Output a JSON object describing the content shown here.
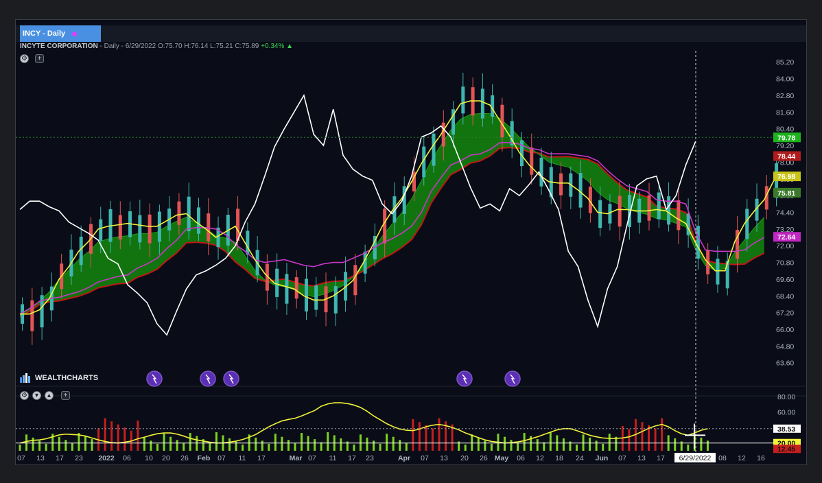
{
  "symbol_tab": "INCY - Daily",
  "info": {
    "name": "INCYTE CORPORATION",
    "details": " - Daily - 6/29/2022 ",
    "o": "O:75.70",
    "h": "H:76.14",
    "l": "L:75.21",
    "c": "C:75.89",
    "chg": "+0.34% ▲"
  },
  "brand": "WEALTHCHARTS",
  "icons": [
    "settings-icon",
    "add-icon",
    "eye-icon",
    "collapse-icon",
    "lightning-event-icon"
  ],
  "colors": {
    "up": "#3fb6b0",
    "down": "#e25555",
    "tenkan": "#f2f23a",
    "kijun": "#c837c8",
    "lagging": "#ffffff",
    "cloud_up": "#137a0e",
    "cloud_edge_red": "#c01616",
    "rsi": "#f2f23a",
    "vol_up": "#7ed321",
    "vol_down": "#c81e1e"
  },
  "chart_data": {
    "type": "candlestick",
    "title": "INCY - Daily",
    "y_ticks": [
      "85.20",
      "84.00",
      "82.80",
      "81.60",
      "80.40",
      "79.20",
      "78.00",
      "76.80",
      "75.60",
      "74.40",
      "73.20",
      "72.00",
      "70.80",
      "69.60",
      "68.40",
      "67.20",
      "66.00",
      "64.80",
      "63.60"
    ],
    "x_ticks": [
      "07",
      "13",
      "17",
      "23",
      "2022",
      "06",
      "10",
      "20",
      "26",
      "Feb",
      "07",
      "11",
      "17",
      "Mar",
      "07",
      "11",
      "17",
      "23",
      "Apr",
      "07",
      "13",
      "20",
      "26",
      "May",
      "06",
      "12",
      "18",
      "24",
      "Jun",
      "07",
      "13",
      "17",
      "6/29/2022",
      "08",
      "12",
      "16"
    ],
    "price_labels": [
      {
        "text": "79.78",
        "color": "#1db31d",
        "value": 79.78
      },
      {
        "text": "78.44",
        "color": "#b01c1c",
        "value": 78.44
      },
      {
        "text": "76.98",
        "color": "#c9c41a",
        "value": 76.98
      },
      {
        "text": "75.81",
        "color": "#3a7a2a",
        "value": 75.81
      },
      {
        "text": "72.64",
        "color": "#c127c1",
        "value": 72.64
      }
    ],
    "ylim": [
      62.6,
      86.0
    ],
    "tenkan": [
      67.1,
      67.1,
      67.4,
      68.2,
      69.6,
      70.5,
      71.6,
      72.3,
      73.2,
      73.4,
      73.5,
      73.6,
      73.5,
      73.4,
      73.4,
      73.8,
      74.2,
      74.3,
      73.7,
      73.2,
      72.6,
      73.0,
      73.4,
      72.2,
      71.0,
      70.0,
      69.3,
      69.1,
      68.9,
      68.4,
      68.1,
      68.1,
      68.4,
      68.9,
      69.5,
      70.7,
      72.0,
      73.4,
      74.5,
      75.4,
      76.6,
      77.9,
      79.0,
      80.0,
      81.1,
      82.2,
      82.4,
      82.4,
      82.1,
      81.0,
      79.9,
      78.7,
      77.8,
      77.1,
      76.6,
      76.5,
      76.5,
      76.0,
      75.4,
      74.4,
      74.3,
      74.6,
      74.6,
      74.5,
      74.5,
      74.6,
      74.5,
      74.0,
      73.6,
      72.2,
      71.0,
      70.2,
      70.2,
      72.3,
      73.6,
      74.5,
      75.3,
      76.7
    ],
    "kijun": [
      67.1,
      67.5,
      68.0,
      68.2,
      68.3,
      68.5,
      68.7,
      69.0,
      69.4,
      69.6,
      69.8,
      69.9,
      70.4,
      70.7,
      71.1,
      71.8,
      72.4,
      73.2,
      73.3,
      73.3,
      73.2,
      72.8,
      72.1,
      71.6,
      71.0,
      70.8,
      70.9,
      71.0,
      70.8,
      70.6,
      70.5,
      70.7,
      70.8,
      70.8,
      71.1,
      71.4,
      71.8,
      72.2,
      72.5,
      72.9,
      73.4,
      74.4,
      75.9,
      76.9,
      77.8,
      78.1,
      78.5,
      78.6,
      78.9,
      79.4,
      79.4,
      79.3,
      79.0,
      78.9,
      78.6,
      78.6,
      78.6,
      78.5,
      78.4,
      78.1,
      77.4,
      76.8,
      76.3,
      76.1,
      75.9,
      75.3,
      75.2,
      75.2,
      75.0,
      73.0,
      71.7,
      71.6,
      71.6,
      71.6,
      71.7,
      72.2,
      72.6
    ],
    "lagging": [
      74.6,
      75.2,
      75.2,
      74.8,
      74.5,
      73.7,
      73.3,
      72.9,
      72.4,
      71.1,
      70.7,
      69.2,
      68.6,
      67.9,
      66.4,
      65.6,
      67.3,
      68.9,
      69.9,
      70.2,
      70.6,
      71.1,
      72.0,
      73.7,
      75.0,
      77.0,
      79.1,
      80.4,
      81.6,
      82.8,
      80.0,
      79.2,
      81.8,
      78.5,
      77.5,
      77.0,
      76.7,
      75.0,
      74.3,
      75.2,
      77.0,
      79.8,
      80.1,
      80.6,
      79.8,
      78.0,
      76.2,
      74.7,
      75.0,
      74.5,
      76.1,
      75.6,
      76.4,
      77.3,
      76.0,
      74.6,
      71.6,
      70.5,
      68.1,
      66.2,
      68.9,
      70.5,
      73.5,
      76.3,
      76.8,
      77.0,
      74.6,
      75.6,
      77.8,
      79.5
    ],
    "rsi_ylabels": [
      "80.00",
      "60.00",
      "38.53",
      "20.00",
      "12.45"
    ],
    "rsi": [
      20.0,
      22.0,
      23.5,
      24.0,
      25.5,
      28.0,
      30.5,
      31.5,
      31.0,
      30.5,
      29.0,
      26.5,
      24.0,
      22.0,
      20.5,
      20.0,
      21.0,
      22.5,
      25.5,
      27.5,
      30.0,
      32.0,
      33.0,
      33.0,
      31.5,
      29.0,
      26.0,
      24.0,
      22.5,
      21.0,
      20.0,
      20.0,
      21.0,
      22.5,
      24.5,
      27.5,
      31.0,
      36.0,
      41.0,
      45.0,
      48.5,
      50.5,
      52.0,
      55.0,
      58.5,
      62.0,
      67.5,
      70.5,
      72.0,
      72.0,
      71.0,
      69.0,
      66.0,
      61.0,
      55.0,
      50.0,
      45.0,
      41.0,
      38.0,
      36.5,
      36.0,
      38.0,
      41.0,
      43.0,
      44.0,
      42.5,
      40.0,
      37.0,
      33.0,
      30.0,
      27.0,
      24.0,
      22.0,
      21.0,
      20.0,
      20.5,
      21.5,
      23.0,
      25.5,
      28.0,
      31.0,
      34.0,
      37.0,
      38.5,
      38.5,
      36.0,
      33.0,
      30.0,
      28.0,
      26.5,
      26.0,
      26.0,
      26.5,
      28.0,
      31.0,
      35.0,
      39.0,
      42.0,
      44.0,
      41.0,
      36.0,
      32.0,
      30.0,
      33.0,
      36.5,
      38.5
    ],
    "rsi_ylim": [
      10,
      88
    ]
  }
}
